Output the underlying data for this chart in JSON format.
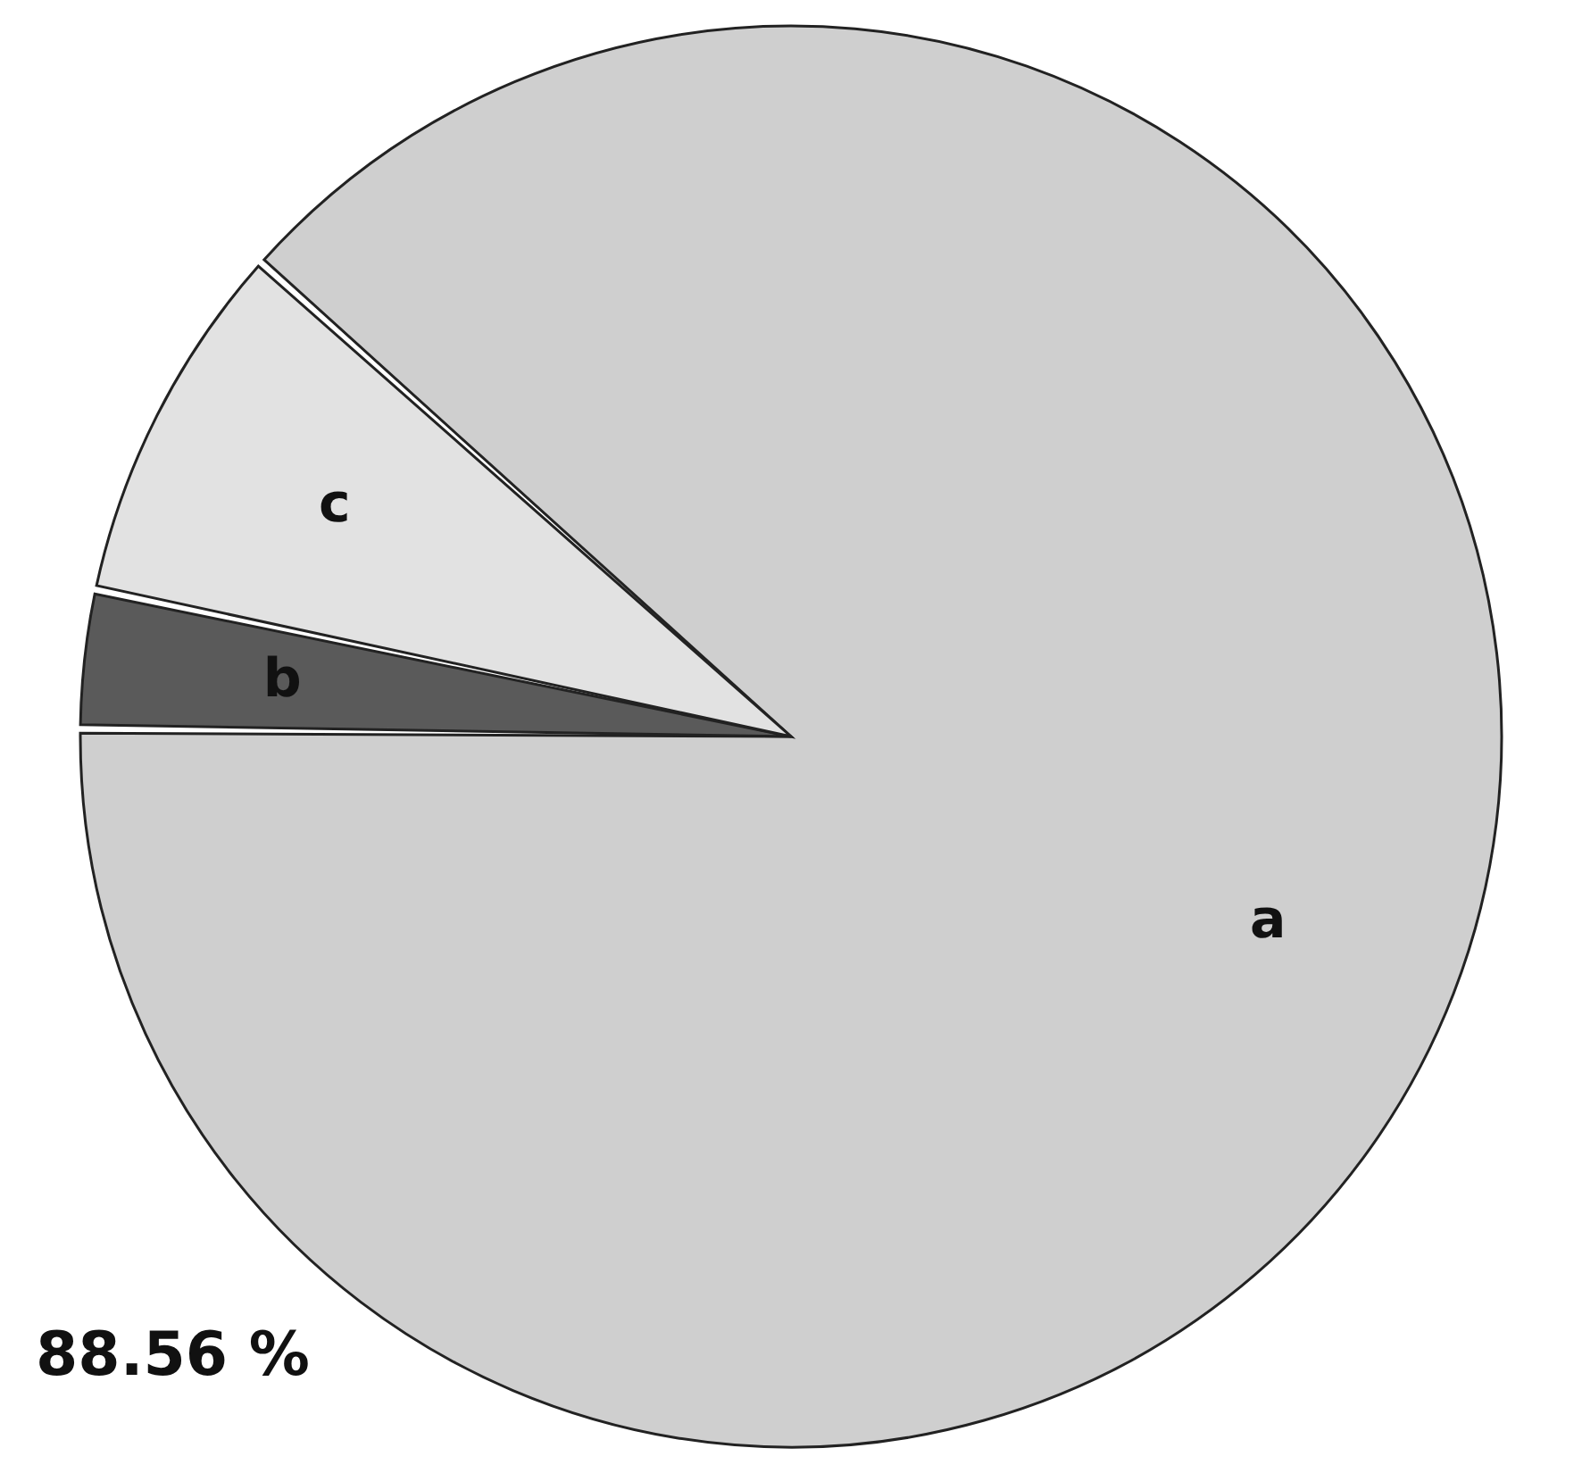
{
  "chart_data": {
    "type": "pie",
    "categories": [
      "a",
      "b",
      "c"
    ],
    "values": [
      88.56,
      3.14,
      8.3
    ],
    "colors": [
      "#cfcfcf",
      "#5a5a5a",
      "#e2e2e2"
    ],
    "value_labels": [
      "88.56 %",
      null,
      null
    ]
  }
}
